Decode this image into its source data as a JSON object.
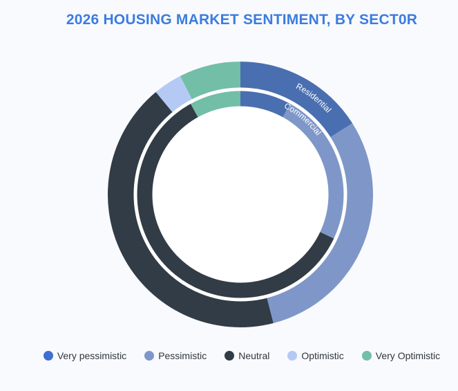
{
  "chart_data": {
    "type": "donut",
    "title": "2026 HOUSING MARKET SENTIMENT, BY SECT0R",
    "categories": [
      "Very pessimistic",
      "Pessimistic",
      "Neutral",
      "Optimistic",
      "Very Optimistic"
    ],
    "colors": [
      "#4a6fb0",
      "#7f97c8",
      "#323c46",
      "#b4caf5",
      "#72bea6"
    ],
    "legend_colors": [
      "#3d6fd4",
      "#7f97c8",
      "#323c46",
      "#b4caf5",
      "#72bea6"
    ],
    "legend_position": "bottom",
    "series": [
      {
        "name": "Residential",
        "ring": "outer",
        "values": [
          16,
          30,
          43,
          3.5,
          7.5
        ]
      },
      {
        "name": "Commercial",
        "ring": "inner",
        "values": [
          8,
          24,
          60,
          0,
          8
        ]
      }
    ]
  }
}
